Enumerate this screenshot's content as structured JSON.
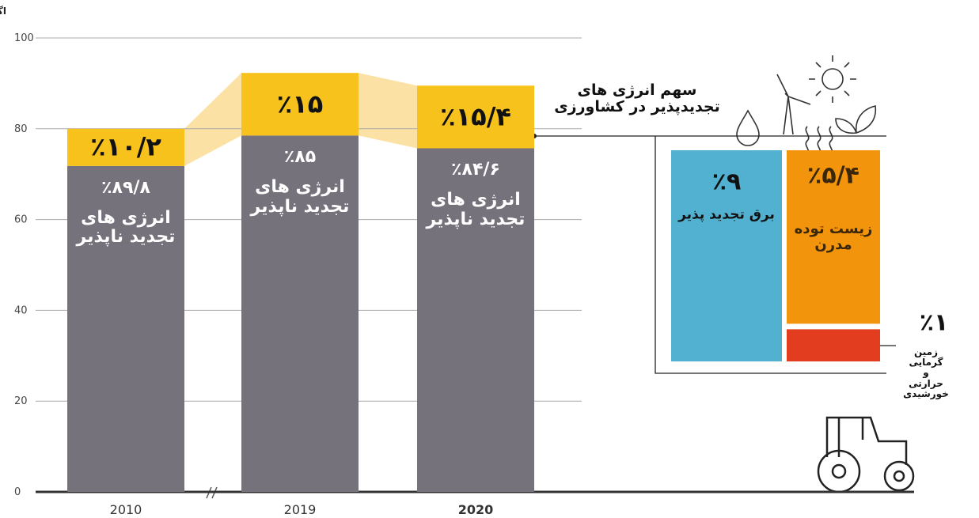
{
  "chart_data": {
    "type": "stacked-bar",
    "y_label": "اگزا ژول(EJ)",
    "categories": [
      "2010",
      "2019",
      "2020"
    ],
    "ylim": [
      0,
      100
    ],
    "yticks": [
      0,
      20,
      40,
      60,
      80,
      100
    ],
    "grid": true,
    "series": [
      {
        "name": "انرژی های\nتجدید ناپذیر",
        "color": "#75727b",
        "values": [
          71.8,
          78.5,
          75.7
        ],
        "shares": [
          89.8,
          85,
          84.6
        ],
        "share_labels": [
          "٪۸۹/۸",
          "٪۸۵",
          "٪۸۴/۶"
        ]
      },
      {
        "color": "#f8c21c",
        "values": [
          8.2,
          13.8,
          13.8
        ],
        "shares": [
          10.2,
          15,
          15.4
        ],
        "share_labels": [
          "٪۱۰/۲",
          "٪۱۵",
          "٪۱۵/۴"
        ]
      }
    ],
    "band_color": "#fbe2a4",
    "breakdown": {
      "title": "سهم انرژی های\nتجدیدپذیر در کشاورزی",
      "items": [
        {
          "name": "برق تجدید پذیر",
          "value": 9,
          "label": "٪۹",
          "color": "#52b0d0"
        },
        {
          "name": "زیست توده\nمدرن",
          "value": 5.4,
          "label": "٪۵/۴",
          "color": "#f2950c"
        },
        {
          "name": "زمین گرمایی\nو\nحرارتی خورشیدی",
          "value": 1,
          "label": "٪۱",
          "color": "#e13d1e"
        }
      ]
    }
  }
}
